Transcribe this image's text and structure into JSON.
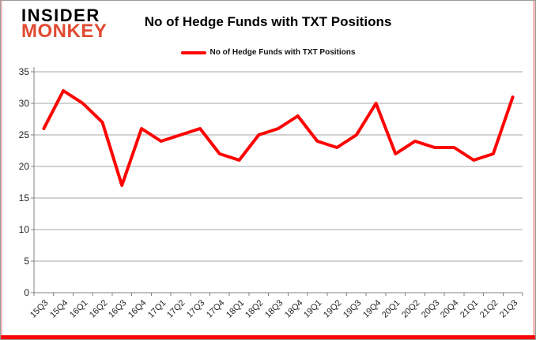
{
  "logo": {
    "line1": "INSIDER",
    "line2": "MONKEY",
    "color_line1": "#000000",
    "color_line2": "#e04a31"
  },
  "header": {
    "title": "No of Hedge Funds with TXT Positions"
  },
  "legend": {
    "label": "No of Hedge Funds with TXT Positions",
    "marker_color": "#fe0202"
  },
  "chart_data": {
    "type": "line",
    "title": "No of Hedge Funds with TXT Positions",
    "categories": [
      "15Q3",
      "15Q4",
      "16Q1",
      "16Q2",
      "16Q3",
      "16Q4",
      "17Q1",
      "17Q2",
      "17Q3",
      "17Q4",
      "18Q1",
      "18Q2",
      "18Q3",
      "18Q4",
      "19Q1",
      "19Q2",
      "19Q3",
      "19Q4",
      "20Q1",
      "20Q2",
      "20Q3",
      "20Q4",
      "21Q1",
      "21Q2",
      "21Q3"
    ],
    "series": [
      {
        "name": "No of Hedge Funds with TXT Positions",
        "color": "#fe0202",
        "values": [
          26,
          32,
          30,
          27,
          17,
          26,
          24,
          25,
          26,
          22,
          21,
          25,
          26,
          28,
          24,
          23,
          25,
          30,
          22,
          24,
          23,
          23,
          21,
          22,
          31
        ]
      }
    ],
    "xlabel": "",
    "ylabel": "",
    "ylim": [
      0,
      35
    ],
    "ytick_interval": 5,
    "grid": true,
    "legend_position": "top-center",
    "gridline_color": "#a6a6a6",
    "axis_color": "#808080",
    "tick_label_color": "#262626"
  },
  "frame": {
    "border_color": "#9a9a9a",
    "side_accent_color": "#f6bdbd",
    "bottom_accent_color": "#fb0404"
  }
}
